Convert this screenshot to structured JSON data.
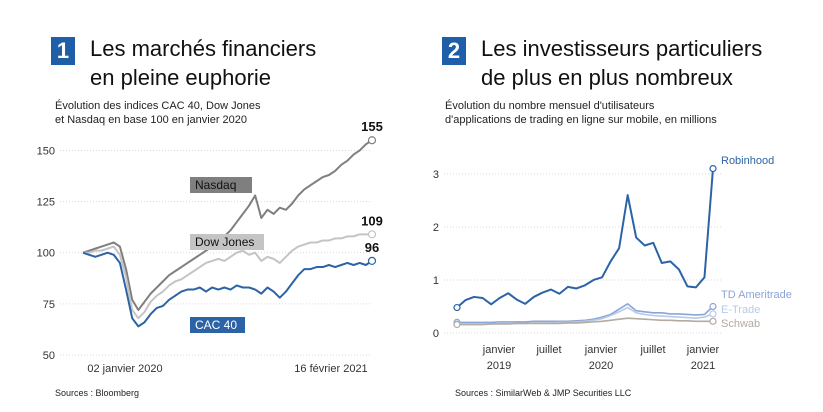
{
  "panel1": {
    "number": "1",
    "title_line1": "Les marchés financiers",
    "title_line2": "en pleine euphorie",
    "subtitle_line1": "Évolution des indices CAC 40, Dow Jones",
    "subtitle_line2": "et Nasdaq en base 100 en janvier 2020",
    "source": "Sources : Bloomberg"
  },
  "panel2": {
    "number": "2",
    "title_line1": "Les investisseurs particuliers",
    "title_line2": "de plus en plus nombreux",
    "subtitle_line1": "Évolution du nombre mensuel d'utilisateurs",
    "subtitle_line2": "d'applications de trading en ligne sur mobile, en millions",
    "source": "Sources : SimilarWeb & JMP Securities LLC"
  },
  "colors": {
    "nasdaq": "#7f7f7f",
    "dowjones": "#c4c4c4",
    "cac40": "#2c63a6",
    "robinhood": "#2c63a6",
    "tdameritrade": "#8aa5d6",
    "etrade": "#b9c9e8",
    "schwab": "#b3aaa2",
    "badge": "#1f5fa8"
  },
  "chart_data": [
    {
      "type": "line",
      "ylim": [
        50,
        160
      ],
      "yticks": [
        50,
        75,
        100,
        125,
        150
      ],
      "xtick_labels": [
        "02 janvier 2020",
        "16 février 2021"
      ],
      "series": [
        {
          "name": "Nasdaq",
          "end_label": "155",
          "values": [
            100,
            101,
            102,
            103,
            104,
            105,
            103,
            92,
            77,
            72,
            76,
            80,
            83,
            86,
            89,
            91,
            93,
            95,
            97,
            99,
            101,
            103,
            106,
            108,
            111,
            115,
            119,
            123,
            128,
            117,
            121,
            119,
            122,
            121,
            124,
            128,
            131,
            133,
            135,
            137,
            138,
            140,
            143,
            145,
            148,
            150,
            153,
            155
          ]
        },
        {
          "name": "Dow Jones",
          "end_label": "109",
          "values": [
            100,
            100,
            101,
            101,
            102,
            103,
            99,
            88,
            72,
            68,
            71,
            76,
            79,
            81,
            84,
            86,
            87,
            89,
            91,
            93,
            95,
            96,
            97,
            96,
            98,
            100,
            101,
            99,
            100,
            96,
            98,
            97,
            95,
            98,
            101,
            103,
            104,
            105,
            105,
            106,
            106,
            107,
            107,
            108,
            108,
            109,
            109,
            109
          ]
        },
        {
          "name": "CAC 40",
          "end_label": "96",
          "values": [
            100,
            99,
            98,
            99,
            100,
            99,
            95,
            82,
            68,
            64,
            66,
            70,
            73,
            74,
            77,
            79,
            81,
            82,
            82,
            83,
            81,
            83,
            82,
            83,
            82,
            84,
            83,
            83,
            82,
            80,
            83,
            81,
            78,
            81,
            85,
            89,
            92,
            92,
            93,
            93,
            94,
            93,
            94,
            95,
            94,
            95,
            94,
            96
          ]
        }
      ]
    },
    {
      "type": "line",
      "ylim": [
        0,
        3.3
      ],
      "yticks": [
        0,
        1,
        2,
        3
      ],
      "xtick_labels": [
        {
          "line1": "janvier",
          "line2": "2019"
        },
        {
          "line1": "juillet",
          "line2": ""
        },
        {
          "line1": "janvier",
          "line2": "2020"
        },
        {
          "line1": "juillet",
          "line2": ""
        },
        {
          "line1": "janvier",
          "line2": "2021"
        }
      ],
      "series": [
        {
          "name": "Robinhood",
          "values": [
            0.48,
            0.62,
            0.68,
            0.66,
            0.54,
            0.66,
            0.75,
            0.63,
            0.55,
            0.68,
            0.76,
            0.82,
            0.74,
            0.87,
            0.84,
            0.9,
            1.0,
            1.05,
            1.35,
            1.6,
            2.6,
            1.8,
            1.65,
            1.7,
            1.32,
            1.35,
            1.2,
            0.88,
            0.86,
            1.05,
            3.1
          ]
        },
        {
          "name": "TD Ameritrade",
          "values": [
            0.2,
            0.2,
            0.2,
            0.2,
            0.2,
            0.21,
            0.21,
            0.21,
            0.21,
            0.22,
            0.22,
            0.22,
            0.22,
            0.22,
            0.23,
            0.24,
            0.26,
            0.3,
            0.35,
            0.45,
            0.55,
            0.42,
            0.4,
            0.38,
            0.38,
            0.36,
            0.36,
            0.35,
            0.34,
            0.35,
            0.5
          ]
        },
        {
          "name": "E-Trade",
          "values": [
            0.17,
            0.17,
            0.17,
            0.17,
            0.17,
            0.18,
            0.18,
            0.18,
            0.18,
            0.19,
            0.19,
            0.19,
            0.2,
            0.2,
            0.21,
            0.22,
            0.24,
            0.27,
            0.33,
            0.4,
            0.48,
            0.38,
            0.35,
            0.33,
            0.32,
            0.31,
            0.3,
            0.29,
            0.28,
            0.3,
            0.36
          ]
        },
        {
          "name": "Schwab",
          "values": [
            0.16,
            0.16,
            0.16,
            0.16,
            0.17,
            0.17,
            0.17,
            0.18,
            0.18,
            0.18,
            0.18,
            0.18,
            0.18,
            0.19,
            0.19,
            0.2,
            0.21,
            0.22,
            0.24,
            0.26,
            0.28,
            0.27,
            0.26,
            0.25,
            0.24,
            0.24,
            0.23,
            0.23,
            0.22,
            0.22,
            0.22
          ]
        }
      ]
    }
  ]
}
